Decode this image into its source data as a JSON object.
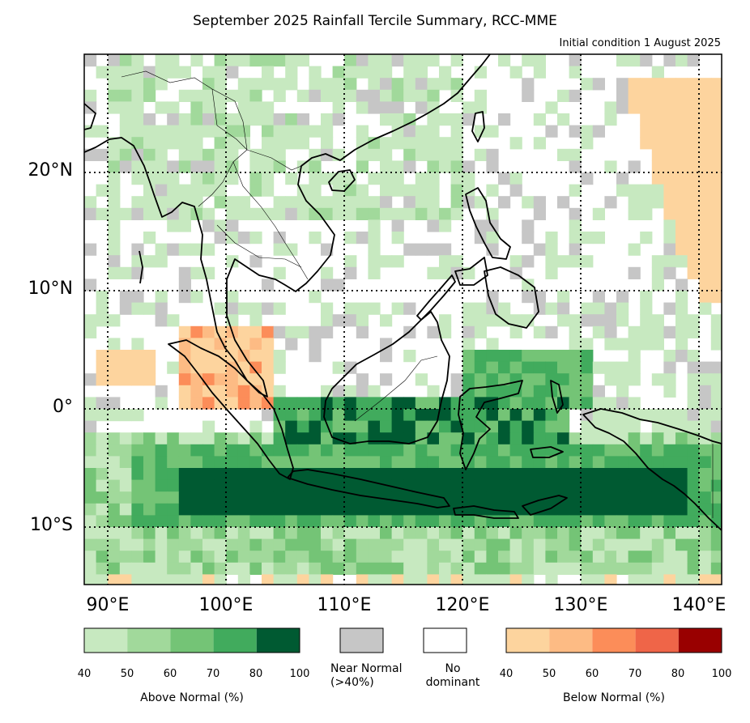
{
  "title": "September 2025 Rainfall Tercile Summary, RCC-MME",
  "subtitle": "Initial condition 1 August 2025",
  "axes": {
    "lat_labels": [
      "20°N",
      "10°N",
      "0°",
      "10°S"
    ],
    "lon_labels": [
      "90°E",
      "100°E",
      "110°E",
      "120°E",
      "130°E",
      "140°E"
    ]
  },
  "colors": {
    "an": [
      "#c7e9c0",
      "#a1d99b",
      "#74c476",
      "#41ab5d",
      "#005a32"
    ],
    "bn": [
      "#fdd49e",
      "#fdbb84",
      "#fc8d59",
      "#ef6548",
      "#990000"
    ],
    "nn": "#c6c6c6",
    "none": "#ffffff"
  },
  "legend": {
    "above_label": "Above Normal (%)",
    "below_label": "Below Normal (%)",
    "near_label_1": "Near Normal",
    "near_label_2": "(>40%)",
    "nodom_label_1": "No",
    "nodom_label_2": "dominant",
    "ticks": [
      "40",
      "50",
      "60",
      "70",
      "80",
      "100"
    ]
  }
}
